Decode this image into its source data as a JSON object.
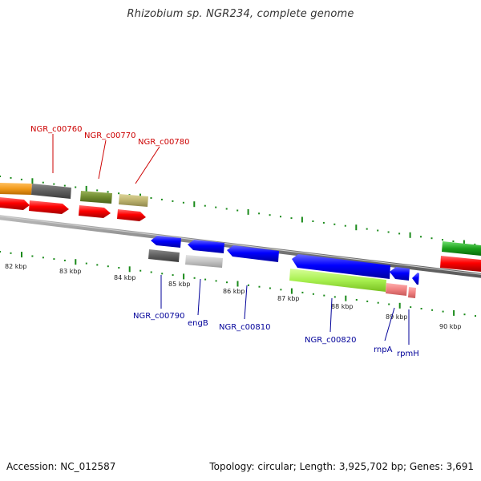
{
  "title": "Rhizobium sp. NGR234, complete genome",
  "footer": {
    "accession": "Accession: NC_012587",
    "summary": "Topology: circular; Length: 3,925,702 bp; Genes: 3,691"
  },
  "scale_labels": [
    "82 kbp",
    "83 kbp",
    "84 kbp",
    "85 kbp",
    "86 kbp",
    "87 kbp",
    "88 kbp",
    "89 kbp",
    "90 kbp"
  ],
  "forward_labels": [
    "NGR_c00760",
    "NGR_c00770",
    "NGR_c00780"
  ],
  "reverse_labels": [
    "NGR_c00790",
    "engB",
    "NGR_c00810",
    "NGR_c00820",
    "rnpA",
    "rpmH"
  ],
  "colors": {
    "forward_label": "#cc0000",
    "reverse_label": "#000099",
    "cds_forward": "#ff0000",
    "cds_reverse": "#0000ff",
    "tick": "#1a8a1a",
    "backbone": "#808080"
  }
}
